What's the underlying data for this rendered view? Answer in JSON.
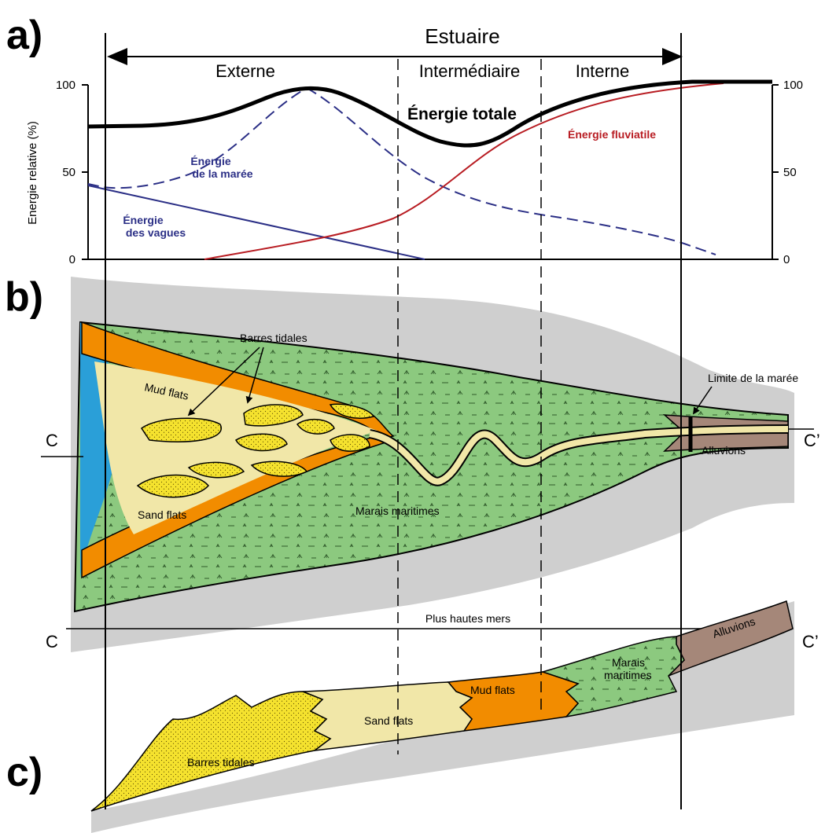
{
  "panels": {
    "a": "a)",
    "b": "b)",
    "c": "c)"
  },
  "energy_chart": {
    "estuary_label": "Estuaire",
    "zones": [
      "Externe",
      "Intermédiaire",
      "Interne"
    ],
    "ylabel": "Energie relative (%)",
    "y_ticks_left": [
      "0",
      "50",
      "100"
    ],
    "y_ticks_right": [
      "0",
      "50",
      "100"
    ],
    "curves": {
      "total": "Énergie totale",
      "tide_line1": "Énergie",
      "tide_line2": "de la marée",
      "waves_line1": "Énergie",
      "waves_line2": "des vagues",
      "fluvial": "Énergie fluviatile"
    },
    "colors": {
      "total": "#000000",
      "tide": "#2b2f86",
      "waves": "#2b2f86",
      "fluvial": "#b81c22"
    }
  },
  "plan_view": {
    "barres_tidales": "Barres tidales",
    "mud_flats": "Mud flats",
    "sand_flats": "Sand flats",
    "marais": "Marais maritimes",
    "alluvions": "Alluvions",
    "limite": "Limite de la marée",
    "section_left": "C",
    "section_right": "C’"
  },
  "cross_section": {
    "section_left": "C",
    "section_right": "C’",
    "sea_level": "Plus hautes mers",
    "barres_tidales": "Barres tidales",
    "sand_flats": "Sand flats",
    "mud_flats": "Mud flats",
    "marais_line1": "Marais",
    "marais_line2": "maritimes",
    "alluvions": "Alluvions"
  },
  "fill_colors": {
    "sea": "#2a9fd8",
    "mud": "#f28c00",
    "sand": "#f1e7a8",
    "bars": "#f5e22e",
    "marsh": "#8cc97f",
    "alluvium": "#a58779",
    "land": "#cfcfcf"
  }
}
